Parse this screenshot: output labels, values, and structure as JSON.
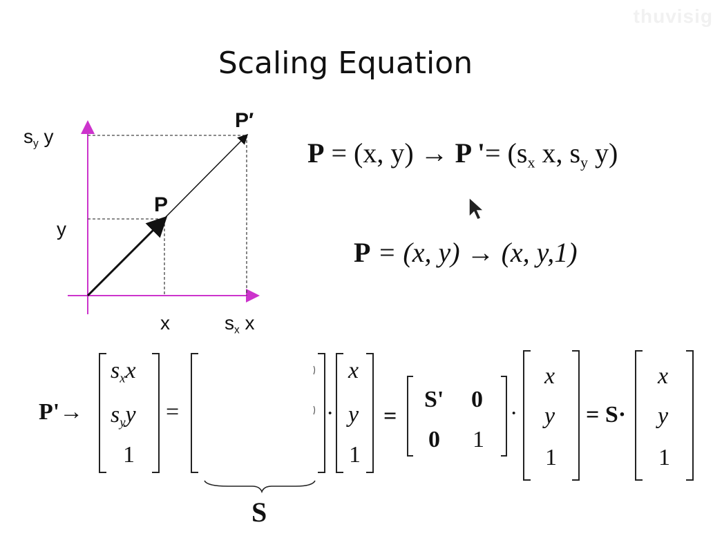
{
  "slide": {
    "title": "Scaling Equation",
    "watermark": "thuvisig"
  },
  "diagram": {
    "label_sy": "s",
    "label_sy_sub": "y",
    "label_sy_var": "y",
    "label_y": "y",
    "label_x": "x",
    "label_sx": "s",
    "label_sx_sub": "x",
    "label_sx_var": "x",
    "point_p": "P",
    "point_p_prime": "P′"
  },
  "equations": {
    "eq1_lhs": "P",
    "eq1_mid": "= (x, y) →",
    "eq1_p_prime": "P '",
    "eq1_rhs_open": "= (s",
    "eq1_rhs_sub_x": "x",
    "eq1_rhs_mid": " x, s",
    "eq1_rhs_sub_y": "y",
    "eq1_rhs_close": " y)",
    "eq2_lhs": "P",
    "eq2_rhs": "= (x, y) → (x, y,1)"
  },
  "matrix_eq": {
    "lhs": "P'→",
    "vec1": [
      "s",
      "x",
      "x",
      "s",
      "y",
      "y",
      "1"
    ],
    "equals": "=",
    "dot": "·",
    "vec2": [
      "x",
      "y",
      "1"
    ],
    "equals_bold": "=",
    "block": [
      "S'",
      "0",
      "0",
      "1"
    ],
    "vec3": [
      "x",
      "y",
      "1"
    ],
    "s_lhs": "= S·",
    "vec4": [
      "x",
      "y",
      "1"
    ],
    "brace_label": "S"
  }
}
